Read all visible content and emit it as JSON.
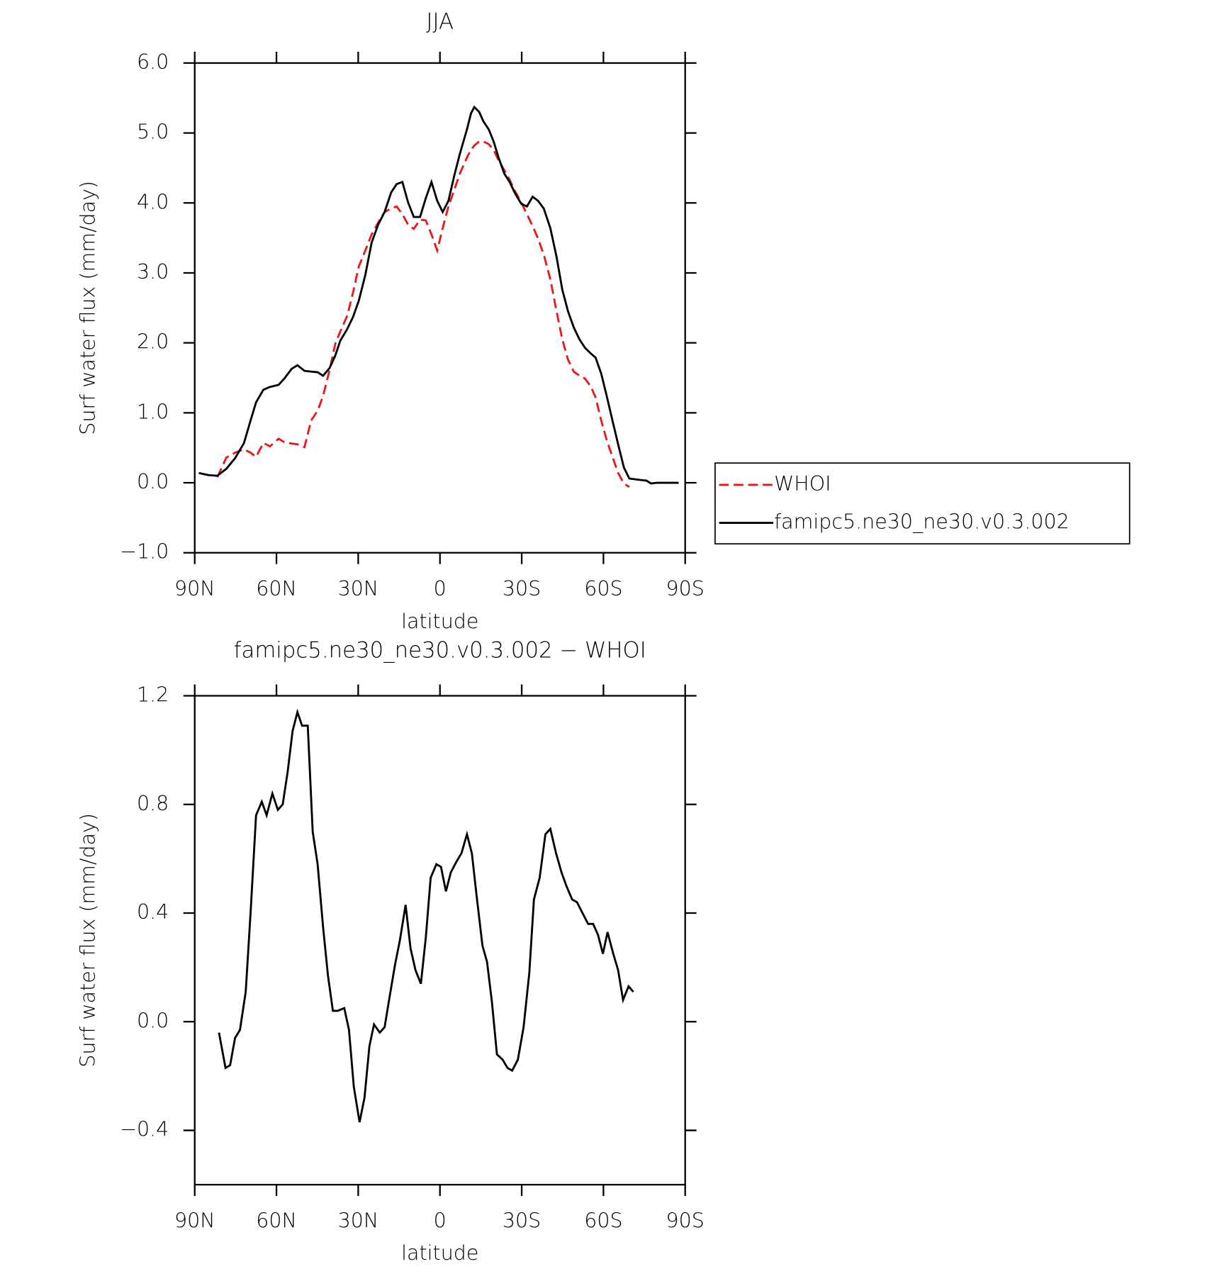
{
  "chart_data": [
    {
      "type": "line",
      "title": "JJA",
      "xlabel": "latitude",
      "ylabel": "Surf water flux (mm/day)",
      "xlim": [
        90,
        -90
      ],
      "xticks": [
        {
          "value": 90,
          "label": "90N"
        },
        {
          "value": 60,
          "label": "60N"
        },
        {
          "value": 30,
          "label": "30N"
        },
        0,
        {
          "value": -30,
          "label": "30S"
        },
        {
          "value": -60,
          "label": "60S"
        },
        {
          "value": -90,
          "label": "90S"
        }
      ],
      "ylim": [
        -1,
        6
      ],
      "yticks": [
        {
          "value": -1,
          "label": "−1.0"
        },
        {
          "value": 0,
          "label": "0.0"
        },
        {
          "value": 1,
          "label": "1.0"
        },
        {
          "value": 2,
          "label": "2.0"
        },
        {
          "value": 3,
          "label": "3.0"
        },
        {
          "value": 4,
          "label": "4.0"
        },
        {
          "value": 5,
          "label": "5.0"
        },
        {
          "value": 6,
          "label": "6.0"
        }
      ],
      "legend": "right",
      "x": [
        88.5,
        85.0,
        81.7,
        78.4,
        75.2,
        71.9,
        69.5,
        67.5,
        64.8,
        62.4,
        59.2,
        57.1,
        54.4,
        52.3,
        49.7,
        47.3,
        44.9,
        42.9,
        40.5,
        38.4,
        36.6,
        34.0,
        31.9,
        29.8,
        27.4,
        25.1,
        22.7,
        20.3,
        17.9,
        15.9,
        13.8,
        11.7,
        9.6,
        7.3,
        5.2,
        3.1,
        1.0,
        -1.0,
        -3.1,
        -5.2,
        -7.3,
        -9.9,
        -11.4,
        -12.6,
        -14.4,
        -15.9,
        -17.9,
        -19.7,
        -21.5,
        -23.6,
        -25.6,
        -27.4,
        -29.8,
        -31.9,
        -34.0,
        -36.0,
        -38.1,
        -40.5,
        -42.8,
        -44.9,
        -47.0,
        -49.1,
        -51.2,
        -53.2,
        -55.3,
        -57.1,
        -59.2,
        -61.2,
        -63.3,
        -65.4,
        -67.5,
        -69.5,
        -71.6,
        -73.7,
        -75.8,
        -77.5,
        -79.6,
        -82.0,
        -84.7,
        -87.6
      ],
      "series": [
        {
          "name": "WHOI",
          "color": "#e8191b",
          "line_style": "dashed",
          "values": [
            null,
            null,
            0.08,
            0.36,
            0.43,
            0.48,
            0.43,
            0.37,
            0.57,
            0.52,
            0.63,
            0.58,
            0.56,
            0.55,
            0.51,
            0.89,
            1.03,
            1.24,
            1.61,
            1.99,
            2.16,
            2.39,
            2.72,
            3.09,
            3.32,
            3.55,
            3.72,
            3.87,
            3.92,
            3.95,
            3.84,
            3.69,
            3.63,
            3.76,
            3.75,
            3.55,
            3.32,
            3.64,
            3.95,
            4.18,
            4.42,
            4.65,
            4.76,
            4.82,
            4.88,
            4.88,
            4.84,
            4.76,
            4.61,
            4.47,
            4.33,
            4.18,
            4.01,
            3.84,
            3.67,
            3.49,
            3.26,
            2.91,
            2.45,
            2.05,
            1.76,
            1.59,
            1.53,
            1.49,
            1.38,
            1.22,
            0.89,
            0.61,
            0.37,
            0.14,
            -0.01,
            -0.06,
            null,
            null,
            null,
            null,
            null,
            null,
            null,
            null
          ]
        },
        {
          "name": "famipc5.ne30_ne30.v0.3.002",
          "color": "#000000",
          "line_style": "solid",
          "values": [
            0.14,
            0.11,
            0.1,
            0.2,
            0.35,
            0.57,
            0.89,
            1.15,
            1.33,
            1.37,
            1.4,
            1.49,
            1.63,
            1.68,
            1.6,
            1.59,
            1.58,
            1.53,
            1.64,
            1.82,
            2.03,
            2.2,
            2.37,
            2.6,
            2.97,
            3.43,
            3.69,
            3.87,
            4.15,
            4.27,
            4.3,
            4.01,
            3.8,
            3.8,
            4.07,
            4.3,
            4.03,
            3.87,
            4.03,
            4.38,
            4.7,
            5.05,
            5.28,
            5.37,
            5.3,
            5.17,
            5.05,
            4.88,
            4.65,
            4.42,
            4.3,
            4.15,
            3.99,
            3.95,
            4.09,
            4.03,
            3.92,
            3.64,
            3.23,
            2.76,
            2.45,
            2.22,
            2.05,
            1.93,
            1.85,
            1.79,
            1.56,
            1.24,
            0.89,
            0.55,
            0.22,
            0.06,
            0.05,
            0.04,
            0.03,
            -0.01,
            0.0,
            0.0,
            0.0,
            0.0
          ]
        }
      ]
    },
    {
      "type": "line",
      "title": "famipc5.ne30_ne30.v0.3.002 − WHOI",
      "xlabel": "latitude",
      "ylabel": "Surf water flux (mm/day)",
      "xlim": [
        90,
        -90
      ],
      "xticks": [
        {
          "value": 90,
          "label": "90N"
        },
        {
          "value": 60,
          "label": "60N"
        },
        {
          "value": 30,
          "label": "30N"
        },
        0,
        {
          "value": -30,
          "label": "30S"
        },
        {
          "value": -60,
          "label": "60S"
        },
        {
          "value": -90,
          "label": "90S"
        }
      ],
      "ylim": [
        -0.6,
        1.2
      ],
      "yticks": [
        {
          "value": -0.4,
          "label": "−0.4"
        },
        {
          "value": 0,
          "label": "0.0"
        },
        0.4,
        0.8,
        1.2
      ],
      "color": "#000000",
      "x": [
        81.1,
        78.7,
        77.0,
        75.2,
        73.4,
        71.3,
        69.5,
        67.5,
        65.4,
        63.6,
        61.5,
        59.5,
        57.7,
        55.9,
        54.1,
        52.3,
        50.6,
        48.5,
        46.7,
        44.9,
        42.9,
        41.1,
        39.3,
        37.5,
        35.1,
        33.4,
        31.6,
        29.5,
        27.7,
        25.9,
        24.2,
        22.1,
        20.3,
        18.5,
        16.5,
        14.7,
        12.6,
        10.8,
        9.0,
        7.0,
        5.2,
        3.4,
        1.3,
        -0.4,
        -2.2,
        -4.0,
        -6.1,
        -7.9,
        -9.9,
        -11.7,
        -13.5,
        -15.6,
        -17.3,
        -19.1,
        -20.9,
        -23.0,
        -24.8,
        -26.5,
        -28.6,
        -30.7,
        -32.8,
        -34.5,
        -36.6,
        -38.7,
        -40.5,
        -42.6,
        -44.6,
        -46.4,
        -48.5,
        -50.3,
        -52.3,
        -54.4,
        -56.2,
        -58.0,
        -59.8,
        -61.5,
        -63.6,
        -65.4,
        -67.2,
        -69.2,
        -71.0
      ],
      "values": [
        -0.04,
        -0.17,
        -0.16,
        -0.06,
        -0.03,
        0.11,
        0.4,
        0.76,
        0.81,
        0.76,
        0.84,
        0.78,
        0.8,
        0.92,
        1.07,
        1.14,
        1.09,
        1.09,
        0.7,
        0.58,
        0.35,
        0.17,
        0.04,
        0.04,
        0.05,
        -0.03,
        -0.24,
        -0.37,
        -0.28,
        -0.09,
        -0.01,
        -0.04,
        -0.02,
        0.09,
        0.21,
        0.3,
        0.43,
        0.27,
        0.19,
        0.14,
        0.31,
        0.53,
        0.58,
        0.57,
        0.48,
        0.55,
        0.59,
        0.62,
        0.69,
        0.62,
        0.46,
        0.28,
        0.22,
        0.07,
        -0.12,
        -0.14,
        -0.17,
        -0.18,
        -0.14,
        -0.02,
        0.18,
        0.45,
        0.53,
        0.69,
        0.71,
        0.62,
        0.55,
        0.5,
        0.45,
        0.44,
        0.4,
        0.36,
        0.36,
        0.32,
        0.25,
        0.33,
        0.25,
        0.19,
        0.08,
        0.13,
        0.11
      ]
    }
  ]
}
